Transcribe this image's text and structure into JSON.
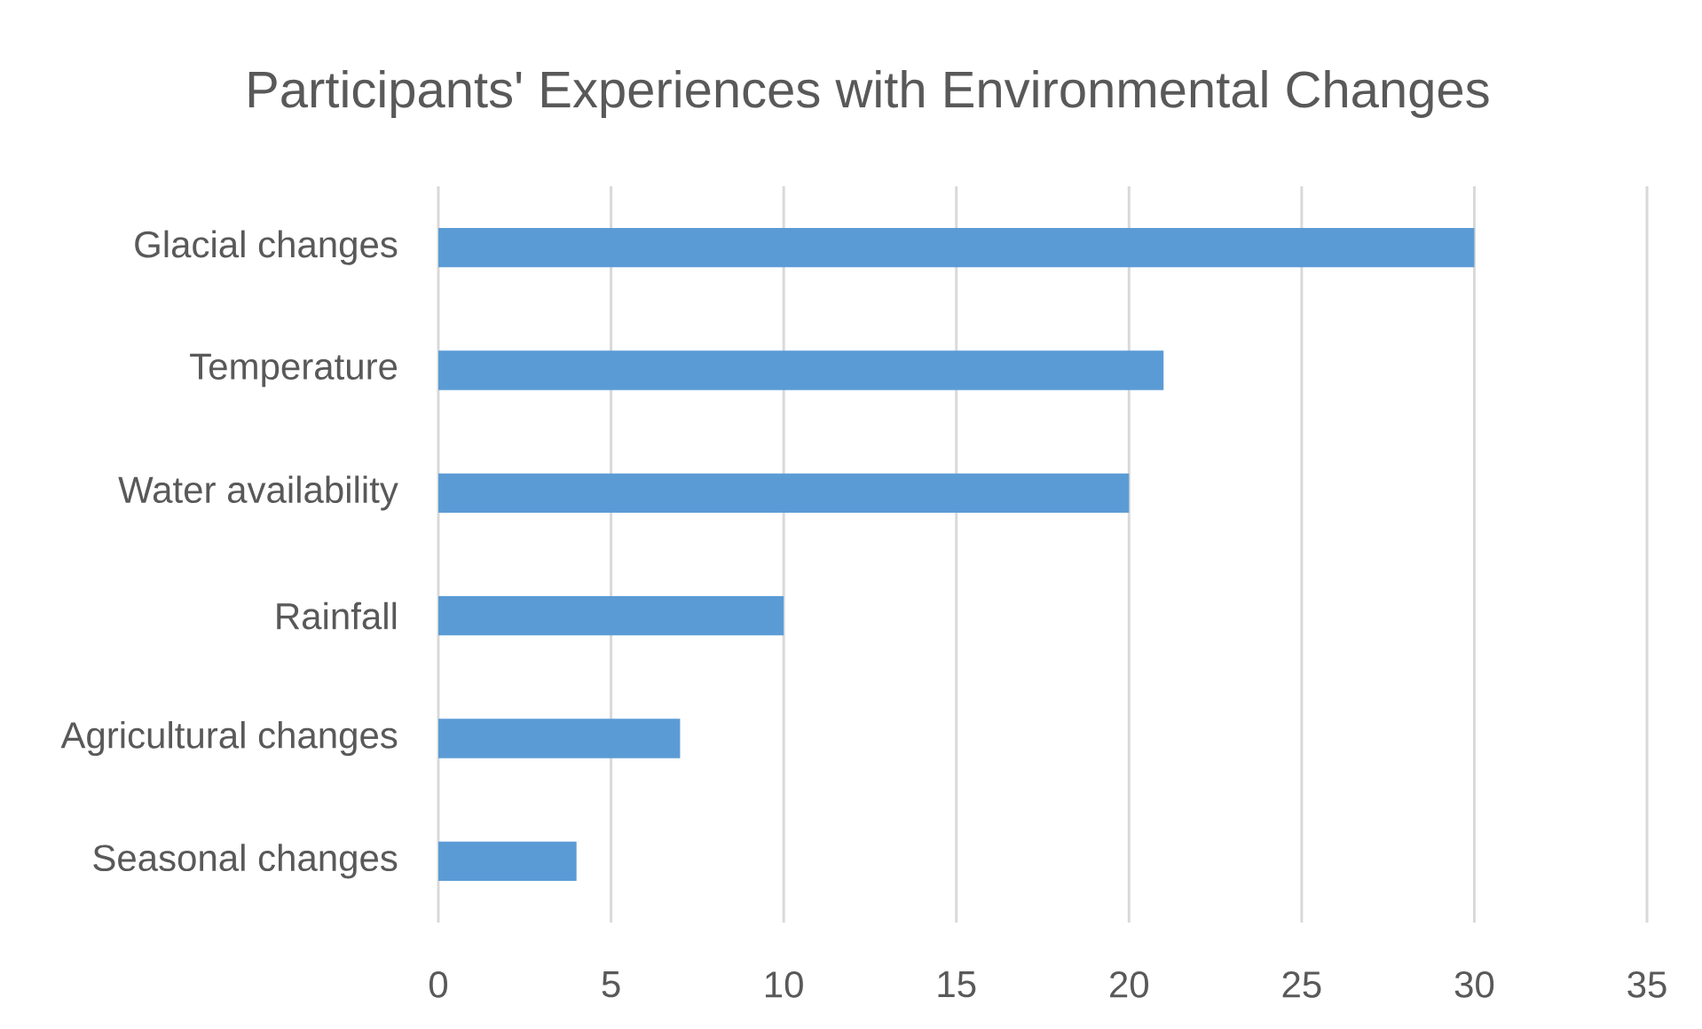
{
  "chart_data": {
    "type": "bar",
    "orientation": "horizontal",
    "title": "Participants' Experiences with Environmental Changes",
    "categories": [
      "Glacial changes",
      "Temperature",
      "Water availability",
      "Rainfall",
      "Agricultural changes",
      "Seasonal changes"
    ],
    "values": [
      30,
      21,
      20,
      10,
      7,
      4
    ],
    "color": "#5b9bd5",
    "xlim": [
      0,
      35
    ],
    "xticks": [
      0,
      5,
      10,
      15,
      20,
      25,
      30,
      35
    ],
    "grid": "x"
  }
}
